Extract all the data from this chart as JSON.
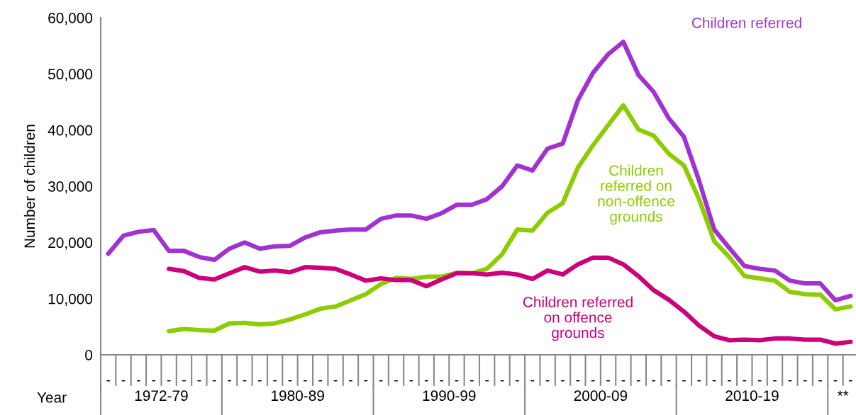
{
  "chart_data": {
    "type": "line",
    "ylabel": "Number of children",
    "xlabel": "Year",
    "categories": [
      "-",
      "-",
      "-",
      "-",
      "-",
      "-",
      "-",
      "-",
      "-",
      "-",
      "-",
      "-",
      "-",
      "-",
      "-",
      "-",
      "-",
      "-",
      "-",
      "-",
      "-",
      "-",
      "-",
      "-",
      "-",
      "-",
      "-",
      "-",
      "-",
      "-",
      "-",
      "-",
      "-",
      "-",
      "-",
      "-",
      "-",
      "-",
      "-",
      "-",
      "-",
      "-",
      "-",
      "-",
      "-",
      "-",
      "-",
      "-",
      "-",
      "-"
    ],
    "series": [
      {
        "name": "Children referred",
        "color": "#a232d0",
        "values": [
          18000,
          21200,
          21900,
          22200,
          18500,
          18500,
          17400,
          16900,
          18900,
          20000,
          18900,
          19300,
          19400,
          20900,
          21800,
          22100,
          22300,
          22300,
          24200,
          24800,
          24800,
          24200,
          25200,
          26700,
          26700,
          27700,
          30000,
          33700,
          32800,
          36700,
          37600,
          45300,
          50200,
          53500,
          55700,
          49800,
          46800,
          42100,
          38800,
          31000,
          22300,
          19000,
          15800,
          15300,
          15000,
          13200,
          12700,
          12700,
          9700,
          10500
        ]
      },
      {
        "name": "Children referred on non-offence grounds",
        "color": "#8ccc00",
        "values": [
          null,
          null,
          null,
          null,
          4200,
          4600,
          4400,
          4300,
          5600,
          5700,
          5400,
          5600,
          6300,
          7200,
          8200,
          8600,
          9700,
          10800,
          12600,
          13700,
          13500,
          13900,
          13900,
          14600,
          14500,
          15300,
          17900,
          22300,
          22100,
          25300,
          27000,
          33300,
          37300,
          40900,
          44400,
          40100,
          39000,
          35800,
          33700,
          27700,
          20200,
          17400,
          14000,
          13600,
          13200,
          11200,
          10800,
          10700,
          8100,
          8600
        ]
      },
      {
        "name": "Children referred on offence grounds",
        "color": "#cc007a",
        "values": [
          null,
          null,
          null,
          null,
          15300,
          14900,
          13700,
          13400,
          14500,
          15600,
          14800,
          15000,
          14700,
          15600,
          15500,
          15300,
          14300,
          13200,
          13600,
          13300,
          13300,
          12200,
          13400,
          14500,
          14500,
          14300,
          14600,
          14300,
          13500,
          15000,
          14300,
          16100,
          17300,
          17300,
          16100,
          14000,
          11500,
          9800,
          7700,
          5200,
          3300,
          2600,
          2700,
          2600,
          2900,
          2900,
          2700,
          2700,
          2000,
          2300
        ]
      }
    ],
    "ylim": [
      0,
      60000
    ],
    "yticks": [
      {
        "value": 0,
        "label": "0"
      },
      {
        "value": 10000,
        "label": "10,000"
      },
      {
        "value": 20000,
        "label": "20,000"
      },
      {
        "value": 30000,
        "label": "30,000"
      },
      {
        "value": 40000,
        "label": "40,000"
      },
      {
        "value": 50000,
        "label": "50,000"
      },
      {
        "value": 60000,
        "label": "60,000"
      }
    ],
    "annotations": [
      "1972-79",
      "1980-89",
      "1990-99",
      "2000-09",
      "2010-19",
      "**"
    ],
    "grid": false,
    "legend": false,
    "marker": "none",
    "line_style": "solid"
  }
}
